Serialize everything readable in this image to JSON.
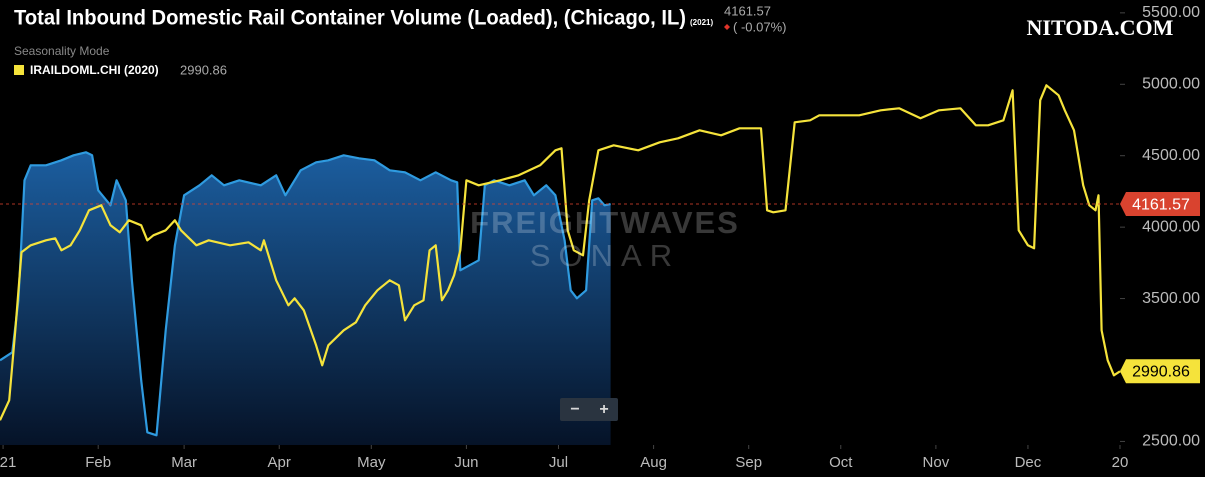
{
  "chart_data": {
    "type": "line",
    "title": "Total Inbound Domestic Rail Container Volume (Loaded), (Chicago, IL)",
    "title_note": "(2021)",
    "header_change": "( -0.07%)",
    "mode_label": "Seasonality Mode",
    "watermark": [
      "FREIGHTWAVES",
      "SONAR"
    ],
    "brand": "NITODA.COM",
    "zoom_buttons": [
      "−",
      "+"
    ],
    "grid": false,
    "xlim": [
      0,
      365
    ],
    "xticks": [
      {
        "value": 1,
        "label": "21"
      },
      {
        "value": 32,
        "label": "Feb"
      },
      {
        "value": 60,
        "label": "Mar"
      },
      {
        "value": 91,
        "label": "Apr"
      },
      {
        "value": 121,
        "label": "May"
      },
      {
        "value": 152,
        "label": "Jun"
      },
      {
        "value": 182,
        "label": "Jul"
      },
      {
        "value": 213,
        "label": "Aug"
      },
      {
        "value": 244,
        "label": "Sep"
      },
      {
        "value": 274,
        "label": "Oct"
      },
      {
        "value": 305,
        "label": "Nov"
      },
      {
        "value": 335,
        "label": "Dec"
      },
      {
        "value": 365,
        "label": "20"
      }
    ],
    "ylim": [
      2475,
      5590
    ],
    "yticks": [
      {
        "value": 2500,
        "label": "2500.00"
      },
      {
        "value": 3000,
        "label": "3000.00"
      },
      {
        "value": 3500,
        "label": "3500.00"
      },
      {
        "value": 4000,
        "label": "4000.00"
      },
      {
        "value": 4500,
        "label": "4500.00"
      },
      {
        "value": 5000,
        "label": "5000.00"
      },
      {
        "value": 5500,
        "label": "5500.00"
      }
    ],
    "series": [
      {
        "color": "#2f9be0",
        "area": true,
        "tag_color": "#d9432f",
        "current": 4161.57,
        "x": [
          0,
          4,
          6,
          8,
          10,
          15,
          20,
          24,
          28,
          30,
          32,
          36,
          38,
          41,
          43,
          46,
          48,
          51,
          54,
          57,
          60,
          65,
          69,
          73,
          78,
          85,
          90,
          93,
          98,
          103,
          107,
          112,
          117,
          122,
          127,
          132,
          137,
          142,
          147,
          149,
          150,
          153,
          156,
          158,
          161,
          166,
          171,
          174,
          178,
          181,
          184,
          186,
          188,
          191,
          193,
          195,
          197,
          199
        ],
        "values": [
          3068,
          3124,
          3488,
          4328,
          4433,
          4433,
          4468,
          4503,
          4524,
          4503,
          4258,
          4153,
          4328,
          4188,
          3628,
          2928,
          2564,
          2543,
          3278,
          3873,
          4223,
          4293,
          4363,
          4293,
          4328,
          4293,
          4363,
          4223,
          4398,
          4454,
          4468,
          4503,
          4482,
          4468,
          4398,
          4384,
          4328,
          4384,
          4328,
          4314,
          3698,
          3733,
          3768,
          4293,
          4328,
          4293,
          4328,
          4223,
          4293,
          4223,
          3908,
          3558,
          3502,
          3558,
          4188,
          4202,
          4153,
          4161.57
        ]
      },
      {
        "name": "IRAILDOML.CHI (2020)",
        "color": "#f5e33b",
        "area": false,
        "tag_color": "#f5e33b",
        "current": 2990.86,
        "x": [
          0,
          3,
          5,
          7,
          10,
          15,
          18,
          20,
          23,
          26,
          29,
          33,
          36,
          39,
          42,
          46,
          48,
          50,
          54,
          57,
          59,
          64,
          68,
          75,
          81,
          85,
          86,
          90,
          94,
          96,
          99,
          103,
          105,
          107,
          112,
          116,
          119,
          123,
          127,
          130,
          132,
          135,
          138,
          140,
          142,
          144,
          146,
          148,
          150,
          152,
          156,
          163,
          169,
          176,
          181,
          183,
          185,
          187,
          190,
          192,
          195,
          200,
          208,
          215,
          221,
          228,
          235,
          241,
          248,
          250,
          252,
          256,
          259,
          264,
          267,
          274,
          280,
          287,
          293,
          300,
          306,
          313,
          318,
          322,
          327,
          330,
          332,
          335,
          337,
          339,
          341,
          345,
          347,
          350,
          353,
          355,
          357,
          358,
          359,
          361,
          363,
          365
        ],
        "values": [
          2648,
          2788,
          3278,
          3824,
          3873,
          3908,
          3922,
          3838,
          3873,
          3978,
          4118,
          4153,
          4013,
          3964,
          4048,
          4013,
          3908,
          3943,
          3978,
          4048,
          3978,
          3873,
          3908,
          3873,
          3894,
          3838,
          3908,
          3628,
          3453,
          3502,
          3418,
          3173,
          3033,
          3173,
          3278,
          3334,
          3453,
          3558,
          3628,
          3593,
          3348,
          3453,
          3488,
          3838,
          3873,
          3488,
          3558,
          3663,
          3838,
          4328,
          4293,
          4328,
          4363,
          4433,
          4538,
          4552,
          3978,
          3838,
          3803,
          4188,
          4538,
          4573,
          4538,
          4594,
          4622,
          4678,
          4643,
          4692,
          4692,
          4118,
          4104,
          4118,
          4734,
          4748,
          4783,
          4783,
          4783,
          4818,
          4832,
          4762,
          4818,
          4832,
          4713,
          4713,
          4748,
          4958,
          3978,
          3873,
          3852,
          4888,
          4993,
          4923,
          4818,
          4678,
          4293,
          4153,
          4118,
          4223,
          3278,
          3068,
          2963,
          2990.86
        ]
      }
    ]
  }
}
